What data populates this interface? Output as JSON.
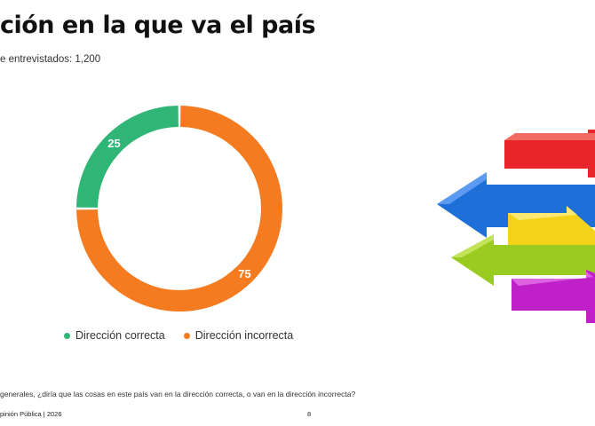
{
  "title": "ción en la que va el país",
  "subtitle": "e entrevistados: 1,200",
  "question": "generales, ¿diría que las cosas en este país van en la dirección correcta, o van en la dirección incorrecta?",
  "footer": {
    "left": "pinión Pública | 2026",
    "page": "8"
  },
  "colors": {
    "correcta": "#2fb575",
    "incorrecta": "#f47b1f"
  },
  "chart_data": {
    "type": "pie",
    "style": "donut",
    "legend_placement": "bottom",
    "slices": [
      {
        "label": "Dirección correcta",
        "value": 25,
        "value_label": "25",
        "color": "#2fb575"
      },
      {
        "label": "Dirección incorrecta",
        "value": 75,
        "value_label": "75",
        "color": "#f47b1f"
      }
    ]
  },
  "decoration": {
    "image": "colorful-arrows-pointing-both-directions",
    "arrow_colors": [
      "#e8262a",
      "#1f6fd8",
      "#f5d21a",
      "#9acb20",
      "#c020c8"
    ]
  }
}
